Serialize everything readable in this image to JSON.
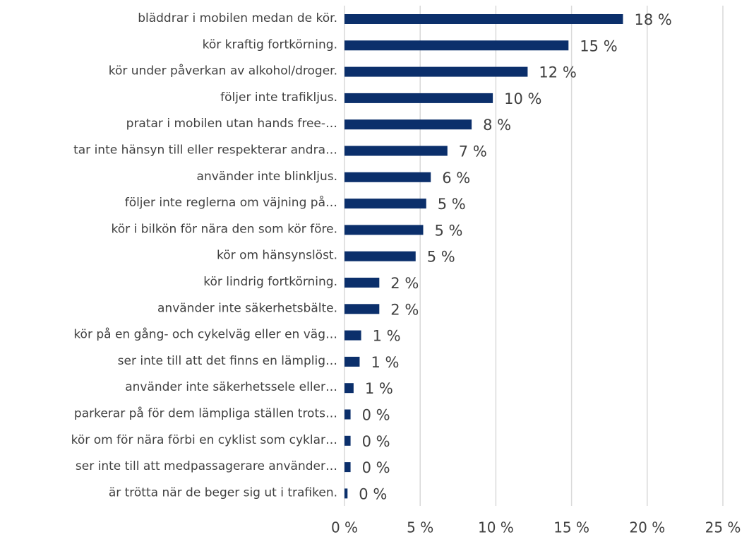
{
  "chart_data": {
    "type": "bar",
    "orientation": "horizontal",
    "color": "#0b2f6b",
    "grid": true,
    "categories": [
      "bläddrar i mobilen medan de kör.",
      "kör kraftig fortkörning.",
      "kör under påverkan av alkohol/droger.",
      "följer inte trafikljus.",
      "pratar i mobilen utan hands free-…",
      "tar inte hänsyn till eller respekterar andra…",
      "använder inte blinkljus.",
      "följer inte reglerna om väjning på…",
      "kör i bilkön för nära den som kör före.",
      "kör om hänsynslöst.",
      "kör lindrig fortkörning.",
      "använder inte säkerhetsbälte.",
      "kör på en gång- och cykelväg eller en väg…",
      "ser inte till att det finns en lämplig…",
      "använder inte säkerhetssele eller…",
      "parkerar på för dem lämpliga ställen trots…",
      "kör om för nära förbi en cyklist som cyklar…",
      "ser inte till att medpassagerare använder…",
      "är trötta när de beger sig ut i trafiken."
    ],
    "values": [
      18.4,
      14.8,
      12.1,
      9.8,
      8.4,
      6.8,
      5.7,
      5.4,
      5.2,
      4.7,
      2.3,
      2.3,
      1.1,
      1.0,
      0.6,
      0.4,
      0.4,
      0.4,
      0.2
    ],
    "value_labels": [
      "18 %",
      "15 %",
      "12 %",
      "10 %",
      "8 %",
      "7 %",
      "6 %",
      "5 %",
      "5 %",
      "5 %",
      "2 %",
      "2 %",
      "1 %",
      "1 %",
      "1 %",
      "0 %",
      "0 %",
      "0 %",
      "0 %"
    ],
    "xlim": [
      0,
      25
    ],
    "xticks": [
      {
        "value": 0,
        "label": "0 %"
      },
      {
        "value": 5,
        "label": "5 %"
      },
      {
        "value": 10,
        "label": "10 %"
      },
      {
        "value": 15,
        "label": "15 %"
      },
      {
        "value": 20,
        "label": "20 %"
      },
      {
        "value": 25,
        "label": "25 %"
      }
    ]
  }
}
